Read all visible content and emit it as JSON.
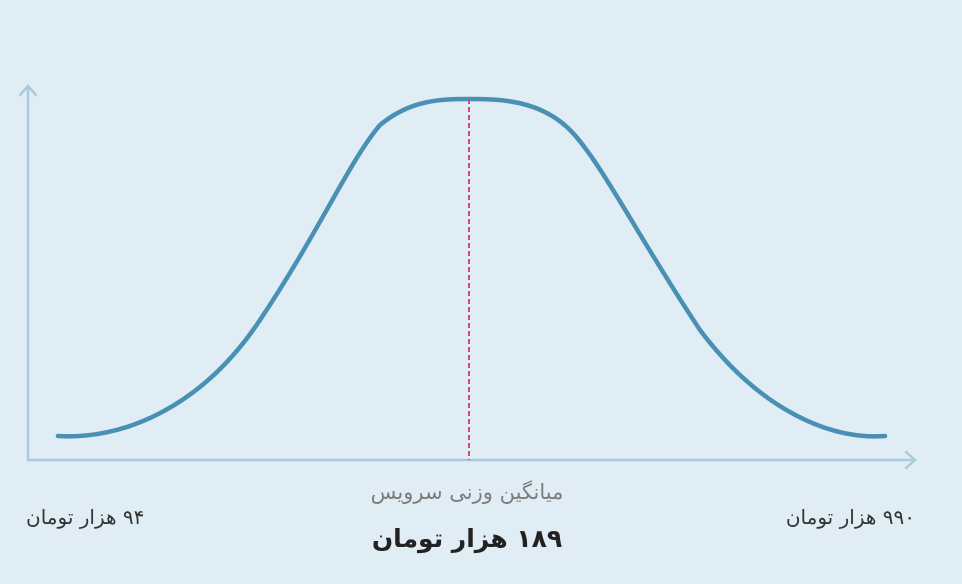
{
  "labels": {
    "min": "۹۴ هزار تومان",
    "max": "۹۹۰ هزار تومان"
  },
  "average": {
    "caption": "میانگین وزنی سرویس",
    "value": "۱۸۹ هزار تومان"
  }
}
